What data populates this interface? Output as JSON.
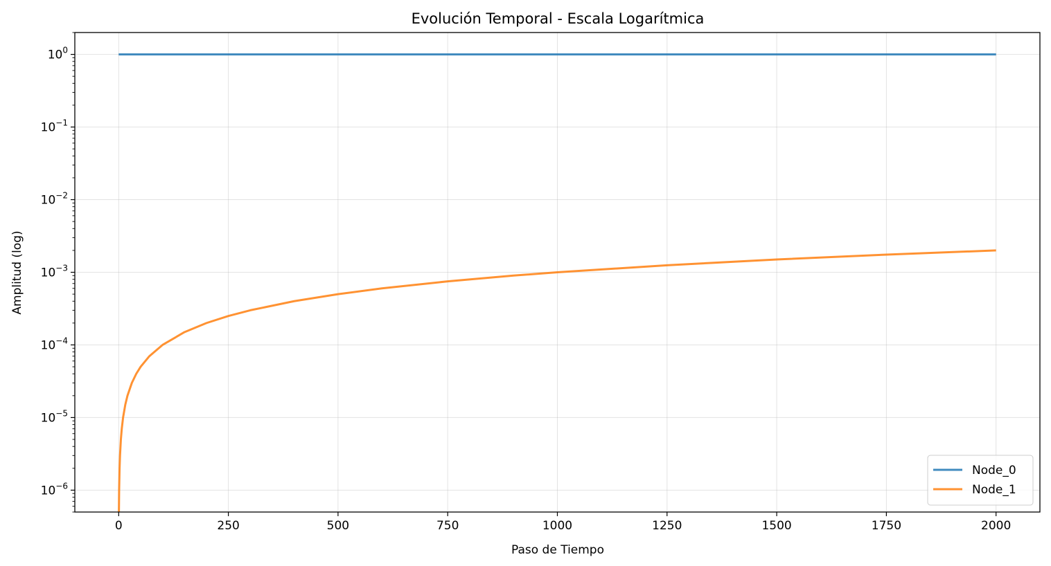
{
  "chart_data": {
    "type": "line",
    "title": "Evolución Temporal - Escala Logarítmica",
    "xlabel": "Paso de Tiempo",
    "ylabel": "Amplitud (log)",
    "xlim": [
      -100,
      2100
    ],
    "ylim": [
      5e-07,
      2
    ],
    "yscale": "log",
    "grid": true,
    "legend_position": "bottom-right",
    "x_ticks": [
      {
        "value": 0,
        "label": "0"
      },
      {
        "value": 250,
        "label": "250"
      },
      {
        "value": 500,
        "label": "500"
      },
      {
        "value": 750,
        "label": "750"
      },
      {
        "value": 1000,
        "label": "1000"
      },
      {
        "value": 1250,
        "label": "1250"
      },
      {
        "value": 1500,
        "label": "1500"
      },
      {
        "value": 1750,
        "label": "1750"
      },
      {
        "value": 2000,
        "label": "2000"
      }
    ],
    "y_ticks": [
      {
        "value": 1,
        "base": "10",
        "exp": "0"
      },
      {
        "value": 0.1,
        "base": "10",
        "exp": "−1"
      },
      {
        "value": 0.01,
        "base": "10",
        "exp": "−2"
      },
      {
        "value": 0.001,
        "base": "10",
        "exp": "−3"
      },
      {
        "value": 0.0001,
        "base": "10",
        "exp": "−4"
      },
      {
        "value": 1e-05,
        "base": "10",
        "exp": "−5"
      },
      {
        "value": 1e-06,
        "base": "10",
        "exp": "−6"
      }
    ],
    "series": [
      {
        "name": "Node_0",
        "color": "#1f77b4",
        "x": [
          0,
          2000
        ],
        "y": [
          1,
          1
        ]
      },
      {
        "name": "Node_1",
        "color": "#ff7f0e",
        "x": [
          0.5,
          1,
          2,
          3,
          5,
          7,
          10,
          15,
          20,
          30,
          40,
          50,
          70,
          100,
          150,
          200,
          250,
          300,
          400,
          500,
          600,
          750,
          900,
          1000,
          1250,
          1500,
          1750,
          2000
        ],
        "y": [
          5e-07,
          1e-06,
          2e-06,
          3e-06,
          5e-06,
          7e-06,
          1e-05,
          1.5e-05,
          2e-05,
          3e-05,
          4e-05,
          5e-05,
          7e-05,
          0.0001,
          0.00015,
          0.0002,
          0.00025,
          0.0003,
          0.0004,
          0.0005,
          0.0006,
          0.00075,
          0.0009,
          0.001,
          0.00125,
          0.0015,
          0.00175,
          0.002
        ]
      }
    ]
  }
}
